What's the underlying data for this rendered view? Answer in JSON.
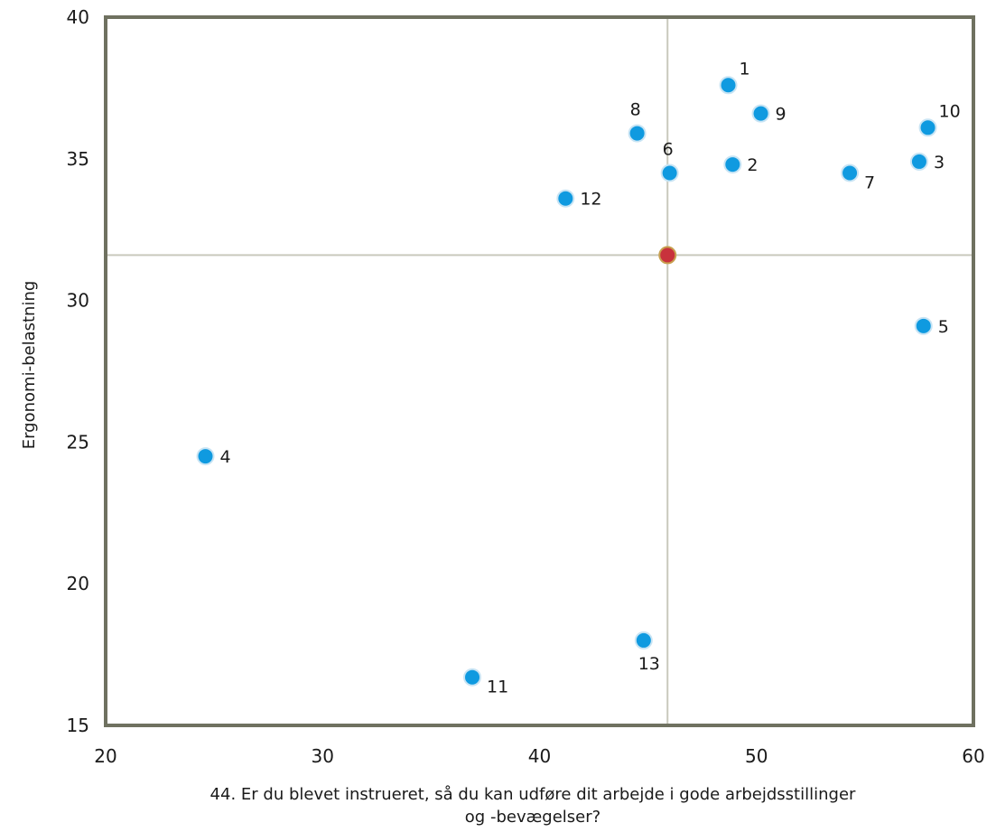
{
  "chart_data": {
    "type": "scatter",
    "title": "",
    "xlabel_lines": [
      "44. Er du blevet instrueret, så du kan udføre dit arbejde i gode arbejdsstillinger",
      "og -bevægelser?"
    ],
    "ylabel": "Ergonomi-belastning",
    "xlim": [
      20,
      60
    ],
    "ylim": [
      15,
      40
    ],
    "xticks": [
      "20",
      "30",
      "40",
      "50",
      "60"
    ],
    "yticks": [
      "15",
      "20",
      "25",
      "30",
      "35",
      "40"
    ],
    "grid": false,
    "legend": "none",
    "reference_point": {
      "x": 45.9,
      "y": 31.6
    },
    "reference_lines": {
      "x": 45.9,
      "y": 31.6
    },
    "points": [
      {
        "label": "1",
        "x": 48.7,
        "y": 37.6,
        "label_pos": "top-right"
      },
      {
        "label": "2",
        "x": 48.9,
        "y": 34.8,
        "label_pos": "right"
      },
      {
        "label": "3",
        "x": 57.5,
        "y": 34.9,
        "label_pos": "right"
      },
      {
        "label": "4",
        "x": 24.6,
        "y": 24.5,
        "label_pos": "right"
      },
      {
        "label": "5",
        "x": 57.7,
        "y": 29.1,
        "label_pos": "right"
      },
      {
        "label": "6",
        "x": 46.0,
        "y": 34.5,
        "label_pos": "top"
      },
      {
        "label": "7",
        "x": 54.3,
        "y": 34.5,
        "label_pos": "bottom-right"
      },
      {
        "label": "8",
        "x": 44.5,
        "y": 35.9,
        "label_pos": "top"
      },
      {
        "label": "9",
        "x": 50.2,
        "y": 36.6,
        "label_pos": "right"
      },
      {
        "label": "10",
        "x": 57.9,
        "y": 36.1,
        "label_pos": "top-right"
      },
      {
        "label": "11",
        "x": 36.9,
        "y": 16.7,
        "label_pos": "bottom-right"
      },
      {
        "label": "12",
        "x": 41.2,
        "y": 33.6,
        "label_pos": "right"
      },
      {
        "label": "13",
        "x": 44.8,
        "y": 18.0,
        "label_pos": "bottom"
      }
    ],
    "colors": {
      "point_fill": "#0f9ae0",
      "point_stroke": "#c8e4f4",
      "reference_fill": "#c8323c",
      "reference_stroke": "#c8a050",
      "reference_line": "#c9c9bd",
      "frame": "#6f7160"
    }
  }
}
